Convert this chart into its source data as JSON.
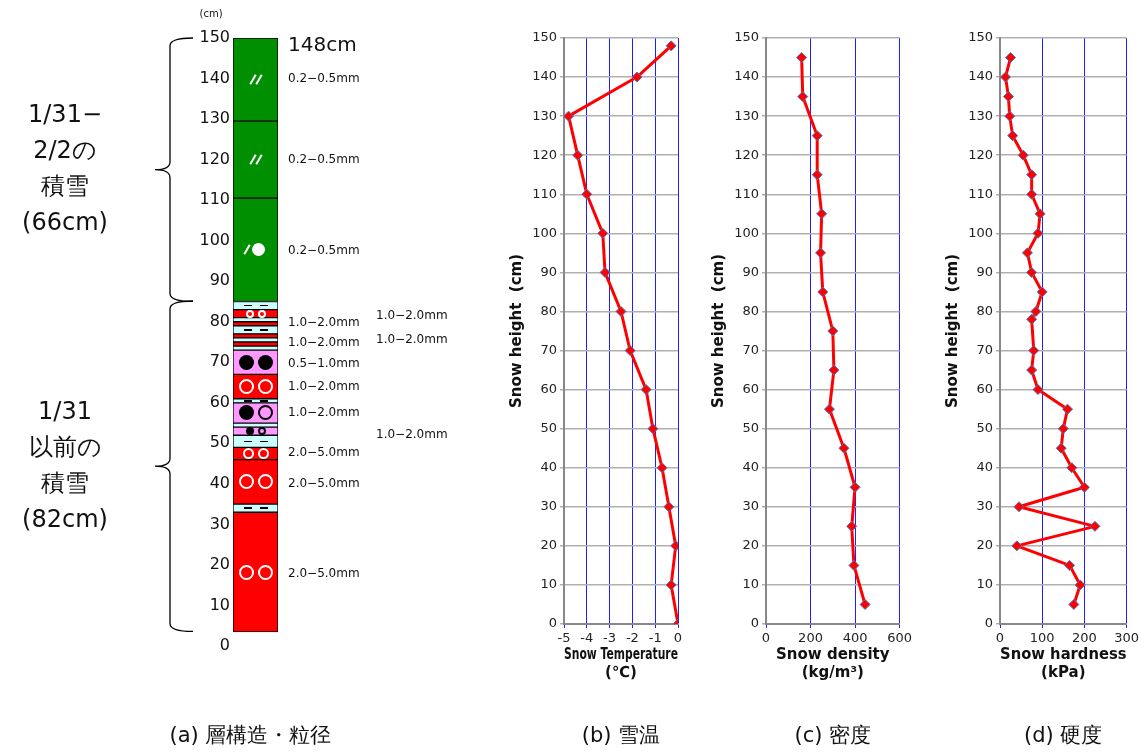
{
  "chart_data": [
    {
      "type": "bar",
      "title": "(a) 層構造・粒径",
      "ylabel": "(cm)",
      "categories": [
        null
      ],
      "ylim": [
        0,
        150
      ],
      "yticks": [
        0,
        10,
        20,
        30,
        40,
        50,
        60,
        70,
        80,
        90,
        100,
        110,
        120,
        130,
        140,
        150
      ],
      "series": [
        {
          "color": "#ff0000",
          "base": [
            3.5
          ],
          "values": [
            29.5
          ]
        },
        {
          "color": "#ccffff",
          "base": [
            33
          ],
          "values": [
            2
          ]
        },
        {
          "color": "#ff0000",
          "base": [
            35
          ],
          "values": [
            11
          ]
        },
        {
          "color": "#ff0000",
          "base": [
            46
          ],
          "values": [
            3
          ]
        },
        {
          "color": "#ccffff",
          "base": [
            49
          ],
          "values": [
            3
          ]
        },
        {
          "color": "#ff99ff",
          "base": [
            52
          ],
          "values": [
            2
          ]
        },
        {
          "color": "#ccffff",
          "base": [
            54
          ],
          "values": [
            1
          ]
        },
        {
          "color": "#ff99ff",
          "base": [
            55
          ],
          "values": [
            5
          ]
        },
        {
          "color": "#ccffff",
          "base": [
            60
          ],
          "values": [
            1
          ]
        },
        {
          "color": "#ff0000",
          "base": [
            61
          ],
          "values": [
            6
          ]
        },
        {
          "color": "#ff99ff",
          "base": [
            67
          ],
          "values": [
            6
          ]
        },
        {
          "color": "#ccffff",
          "base": [
            73
          ],
          "values": [
            1
          ]
        },
        {
          "color": "#ff0000",
          "base": [
            74
          ],
          "values": [
            1
          ]
        },
        {
          "color": "#ccffff",
          "base": [
            75
          ],
          "values": [
            1
          ]
        },
        {
          "color": "#ff0000",
          "base": [
            76
          ],
          "values": [
            1
          ]
        },
        {
          "color": "#ccffff",
          "base": [
            77
          ],
          "values": [
            2
          ]
        },
        {
          "color": "#ff0000",
          "base": [
            79
          ],
          "values": [
            1
          ]
        },
        {
          "color": "#ccffff",
          "base": [
            80
          ],
          "values": [
            1
          ]
        },
        {
          "color": "#ff0000",
          "base": [
            81
          ],
          "values": [
            2
          ]
        },
        {
          "color": "#ccffff",
          "base": [
            83
          ],
          "values": [
            2
          ]
        },
        {
          "color": "#008f00",
          "base": [
            85
          ],
          "values": [
            25.5
          ]
        },
        {
          "color": "#008f00",
          "base": [
            110.5
          ],
          "values": [
            19
          ]
        },
        {
          "color": "#008f00",
          "base": [
            129.5
          ],
          "values": [
            20.5
          ]
        }
      ],
      "annotations": [
        "148cm",
        "0.2−0.5mm",
        "0.2−0.5mm",
        "0.2−0.5mm",
        "1.0−2.0mm",
        "1.0−2.0mm",
        "0.5−1.0mm",
        "1.0−2.0mm",
        "1.0−2.0mm",
        "2.0−5.0mm",
        "2.0−5.0mm",
        "2.0−5.0mm",
        "1.0−2.0mm",
        "1.0−2.0mm",
        "1.0−2.0mm",
        "1/31−2/2の積雪(66cm)",
        "1/31以前の積雪(82cm)"
      ]
    },
    {
      "type": "line",
      "title": "(b) 雪温",
      "xlabel": "Snow Temperature\n(℃)",
      "ylabel": "Snow height  (cm)",
      "grid": true,
      "marker": "diamond",
      "xlim": [
        -5,
        0
      ],
      "xticks": [
        -5,
        -4,
        -3,
        -2,
        -1,
        0
      ],
      "ylim": [
        0,
        150
      ],
      "yticks": [
        0,
        10,
        20,
        30,
        40,
        50,
        60,
        70,
        80,
        90,
        100,
        110,
        120,
        130,
        140,
        150
      ],
      "x": [
        -0.3,
        -1.8,
        -4.8,
        -4.4,
        -4.0,
        -3.3,
        -3.2,
        -2.5,
        -2.1,
        -1.4,
        -1.1,
        -0.7,
        -0.4,
        -0.1,
        -0.3,
        0
      ],
      "series": [
        {
          "color": "#ff0000",
          "values": [
            148,
            140,
            130,
            120,
            110,
            100,
            90,
            80,
            70,
            60,
            50,
            40,
            30,
            20,
            10,
            0
          ]
        }
      ]
    },
    {
      "type": "line",
      "title": "(c) 密度",
      "xlabel": "Snow density\n(kg/m³)",
      "ylabel": "Snow height  (cm)",
      "grid": true,
      "marker": "diamond",
      "xlim": [
        0,
        600
      ],
      "xticks": [
        0,
        200,
        400,
        600
      ],
      "ylim": [
        0,
        150
      ],
      "yticks": [
        0,
        10,
        20,
        30,
        40,
        50,
        60,
        70,
        80,
        90,
        100,
        110,
        120,
        130,
        140,
        150
      ],
      "x": [
        160,
        165,
        230,
        230,
        250,
        245,
        255,
        300,
        305,
        285,
        350,
        400,
        385,
        395,
        445
      ],
      "series": [
        {
          "color": "#ff0000",
          "values": [
            145,
            135,
            125,
            115,
            105,
            95,
            85,
            75,
            65,
            55,
            45,
            35,
            25,
            15,
            5
          ]
        }
      ]
    },
    {
      "type": "line",
      "title": "(d) 硬度",
      "xlabel": "Snow hardness\n(kPa)",
      "ylabel": "Snow height  (cm)",
      "grid": true,
      "marker": "diamond",
      "xlim": [
        0,
        300
      ],
      "xticks": [
        0,
        100,
        200,
        300
      ],
      "ylim": [
        0,
        150
      ],
      "yticks": [
        0,
        10,
        20,
        30,
        40,
        50,
        60,
        70,
        80,
        90,
        100,
        110,
        120,
        130,
        140,
        150
      ],
      "x": [
        25,
        13,
        20,
        23,
        30,
        55,
        75,
        75,
        95,
        90,
        65,
        75,
        100,
        85,
        75,
        80,
        75,
        90,
        160,
        150,
        145,
        170,
        200,
        45,
        225,
        40,
        165,
        190,
        175
      ],
      "series": [
        {
          "color": "#ff0000",
          "values": [
            145,
            140,
            135,
            130,
            125,
            120,
            115,
            110,
            105,
            100,
            95,
            90,
            85,
            80,
            78,
            70,
            65,
            60,
            55,
            50,
            45,
            40,
            35,
            30,
            25,
            20,
            15,
            10,
            5
          ]
        }
      ]
    }
  ]
}
